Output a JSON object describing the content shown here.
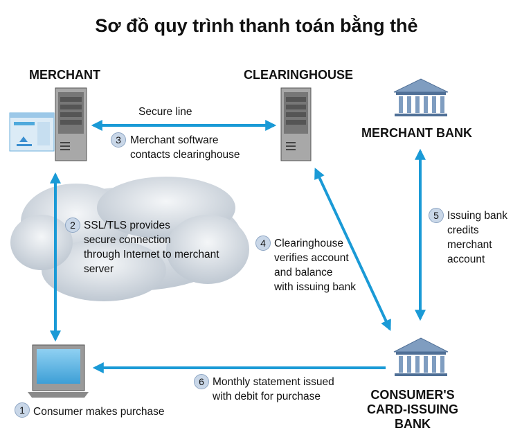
{
  "title": "Sơ đồ quy trình thanh toán bằng thẻ",
  "nodes": {
    "merchant": "MERCHANT",
    "clearinghouse": "CLEARINGHOUSE",
    "merchant_bank": "MERCHANT BANK",
    "issuing_bank": [
      "CONSUMER'S",
      "CARD-ISSUING",
      "BANK"
    ]
  },
  "secure_line": "Secure line",
  "steps": [
    {
      "num": "1",
      "lines": [
        "Consumer makes purchase"
      ]
    },
    {
      "num": "2",
      "lines": [
        "SSL/TLS provides",
        "secure connection",
        "through Internet to merchant",
        "server"
      ]
    },
    {
      "num": "3",
      "lines": [
        "Merchant software",
        "contacts clearinghouse"
      ]
    },
    {
      "num": "4",
      "lines": [
        "Clearinghouse",
        "verifies account",
        "and balance",
        "with issuing bank"
      ]
    },
    {
      "num": "5",
      "lines": [
        "Issuing bank",
        "credits",
        "merchant",
        "account"
      ]
    },
    {
      "num": "6",
      "lines": [
        "Monthly statement issued",
        "with debit for purchase"
      ]
    }
  ],
  "colors": {
    "arrow": "#1a9ad6",
    "cloud": "#cfd6de",
    "server": "#8c8c8c",
    "screen": "#4fa9dc",
    "bank": "#6f8fb5"
  }
}
